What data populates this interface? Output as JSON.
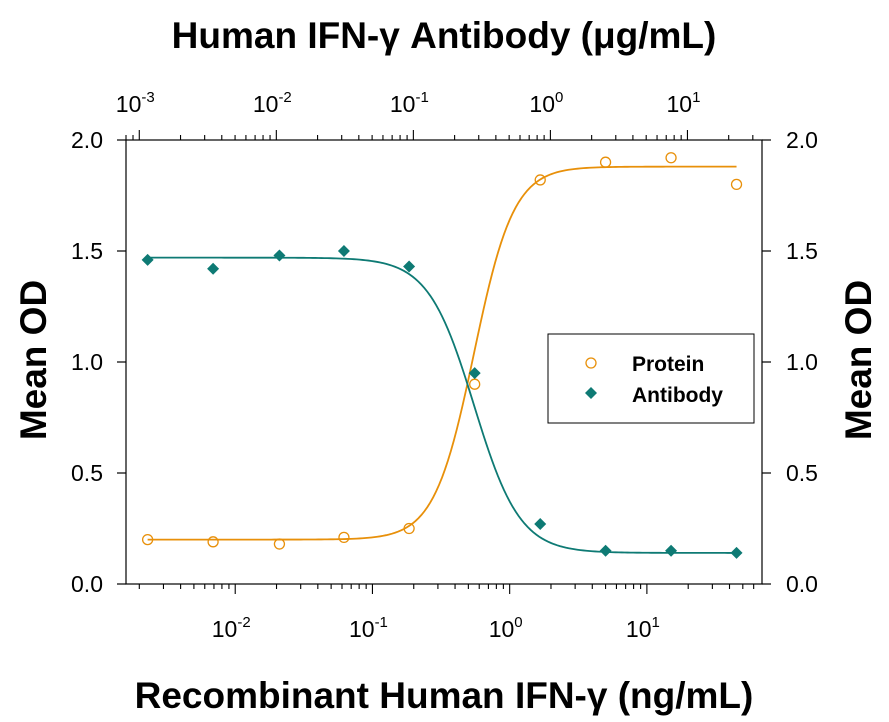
{
  "chart_data": {
    "type": "scatter",
    "title": "Human IFN-γ Antibody (μg/mL)",
    "xlabel": "Recombinant Human IFN-γ (ng/mL)",
    "ylabel": "Mean OD",
    "ylabel_right": "Mean OD",
    "x_scale": "log",
    "xlim": [
      0.0016,
      69
    ],
    "ylim": [
      0,
      2.0
    ],
    "x_ticks": [
      {
        "base": "10",
        "exp": "-2"
      },
      {
        "base": "10",
        "exp": "-1"
      },
      {
        "base": "10",
        "exp": "0"
      },
      {
        "base": "10",
        "exp": "1"
      }
    ],
    "x2_scale": "log",
    "x2lim": [
      0.0008,
      35
    ],
    "x2_ticks": [
      {
        "base": "10",
        "exp": "-3"
      },
      {
        "base": "10",
        "exp": "-2"
      },
      {
        "base": "10",
        "exp": "-1"
      },
      {
        "base": "10",
        "exp": "0"
      },
      {
        "base": "10",
        "exp": "1"
      }
    ],
    "y_ticks": [
      "0.0",
      "0.5",
      "1.0",
      "1.5",
      "2.0"
    ],
    "grid": false,
    "legend_position": "right",
    "series": [
      {
        "name": "Protein",
        "marker": "open-circle",
        "color": "#E8900A",
        "x": [
          0.0023,
          0.0069,
          0.021,
          0.062,
          0.185,
          0.556,
          1.67,
          5.0,
          15,
          45
        ],
        "y": [
          0.2,
          0.19,
          0.18,
          0.21,
          0.25,
          0.9,
          1.82,
          1.9,
          1.92,
          1.8
        ],
        "fit": {
          "bottom": 0.2,
          "top": 1.88,
          "ec50": 0.55,
          "hill": 3.0
        }
      },
      {
        "name": "Antibody",
        "marker": "filled-diamond",
        "color": "#0E7A74",
        "x": [
          0.0023,
          0.0069,
          0.021,
          0.062,
          0.185,
          0.556,
          1.67,
          5.0,
          15,
          45
        ],
        "y": [
          1.46,
          1.42,
          1.48,
          1.5,
          1.43,
          0.95,
          0.27,
          0.15,
          0.15,
          0.14
        ],
        "fit": {
          "bottom": 0.14,
          "top": 1.47,
          "ec50": 0.55,
          "hill": -2.6
        }
      }
    ]
  }
}
